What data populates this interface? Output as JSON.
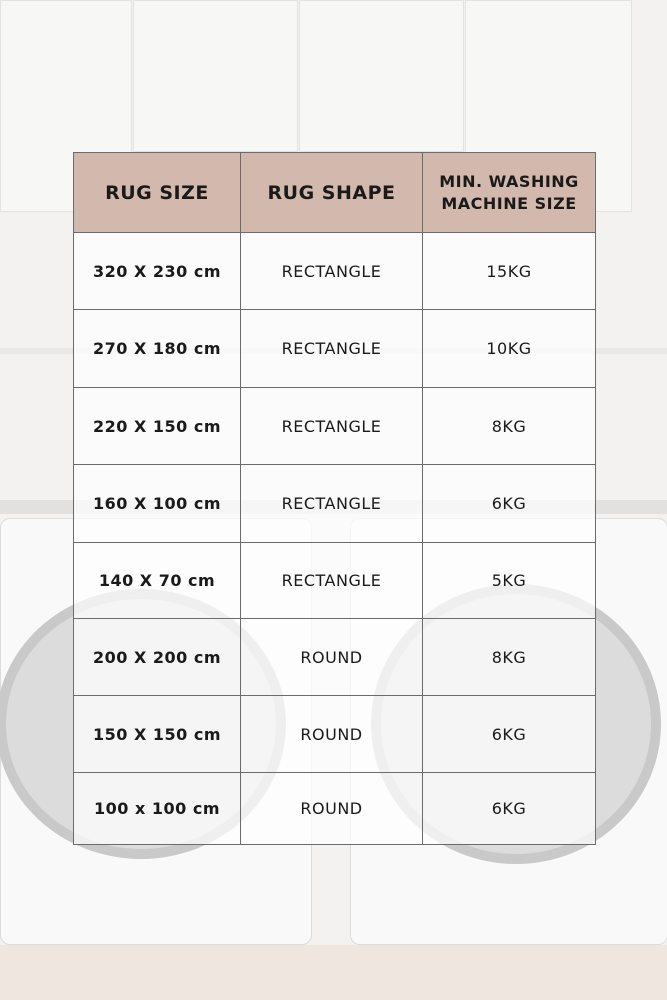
{
  "table": {
    "headers": [
      "RUG SIZE",
      "RUG SHAPE",
      "MIN. WASHING MACHINE SIZE"
    ],
    "header_line1": "MIN. WASHING",
    "header_line2": "MACHINE SIZE",
    "rows": [
      {
        "size": "320 X 230 cm",
        "shape": "RECTANGLE",
        "machine": "15KG"
      },
      {
        "size": "270 X 180 cm",
        "shape": "RECTANGLE",
        "machine": "10KG"
      },
      {
        "size": "220 X 150 cm",
        "shape": "RECTANGLE",
        "machine": "8KG"
      },
      {
        "size": "160 X 100 cm",
        "shape": "RECTANGLE",
        "machine": "6KG"
      },
      {
        "size": "140 X 70 cm",
        "shape": "RECTANGLE",
        "machine": "5KG"
      },
      {
        "size": "200 X 200 cm",
        "shape": "ROUND",
        "machine": "8KG"
      },
      {
        "size": "150 X 150 cm",
        "shape": "ROUND",
        "machine": "6KG"
      },
      {
        "size": "100 x 100 cm",
        "shape": "ROUND",
        "machine": "6KG"
      }
    ]
  },
  "colors": {
    "header_bg": "#d3b8ad",
    "border": "#6b6b6b",
    "text": "#1a1a1a"
  }
}
